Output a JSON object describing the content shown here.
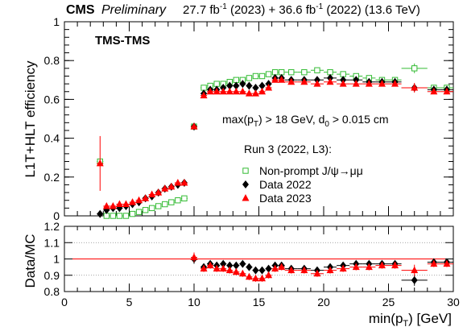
{
  "header": {
    "cms": "CMS",
    "preliminary": "Preliminary",
    "lumi_2023": "27.7 fb",
    "lumi_sup1": "-1",
    "lumi_mid": " (2023) + 36.6 fb",
    "lumi_sup2": "-1",
    "lumi_end": " (2022) (13.6 TeV)"
  },
  "annotations": {
    "trigger": "TMS-TMS",
    "cut_a": "max(p",
    "cut_sub": "T",
    "cut_b": ") > 18 GeV, d",
    "cut_sub2": "0",
    "cut_c": " > 0.015 cm",
    "run": "Run 3 (2022, L3):"
  },
  "legend": {
    "mc": "Non-prompt J/ψ→μμ",
    "data2022": "Data 2022",
    "data2023": "Data 2023"
  },
  "colors": {
    "mc": "#33bb33",
    "data2022": "#000000",
    "data2023": "#ff0000",
    "unity_line": "#ff0000",
    "grid": "#888888"
  },
  "chart_data": [
    {
      "type": "scatter",
      "ylabel": "L1T+HLT efficiency",
      "xlim": [
        0,
        30
      ],
      "ylim": [
        0,
        1
      ],
      "y_ticks": [
        "0",
        "0.2",
        "0.4",
        "0.6",
        "0.8",
        "1"
      ],
      "series": [
        {
          "name": "Non-prompt J/ψ→μμ",
          "marker": "open-square",
          "x": [
            2.75,
            3.25,
            3.75,
            4.25,
            4.75,
            5.25,
            5.75,
            6.25,
            6.75,
            7.25,
            7.75,
            8.25,
            8.75,
            9.25,
            10.0,
            10.75,
            11.25,
            11.75,
            12.25,
            12.75,
            13.25,
            13.75,
            14.25,
            14.75,
            15.25,
            15.75,
            16.25,
            16.75,
            17.5,
            18.5,
            19.5,
            20.5,
            21.5,
            22.5,
            23.5,
            24.5,
            25.5,
            27.0,
            28.5,
            29.5
          ],
          "y": [
            0.28,
            0.0,
            0.0,
            0.0,
            0.0,
            0.01,
            0.02,
            0.03,
            0.04,
            0.05,
            0.06,
            0.07,
            0.08,
            0.09,
            0.46,
            0.66,
            0.67,
            0.68,
            0.68,
            0.69,
            0.7,
            0.7,
            0.71,
            0.72,
            0.72,
            0.73,
            0.74,
            0.74,
            0.74,
            0.74,
            0.75,
            0.74,
            0.73,
            0.72,
            0.71,
            0.7,
            0.7,
            0.76,
            0.66,
            0.66
          ]
        },
        {
          "name": "Data 2022",
          "marker": "filled-diamond",
          "x": [
            2.75,
            3.25,
            3.75,
            4.25,
            4.75,
            5.25,
            5.75,
            6.25,
            6.75,
            7.25,
            7.75,
            8.25,
            8.75,
            9.25,
            10.0,
            10.75,
            11.25,
            11.75,
            12.25,
            12.75,
            13.25,
            13.75,
            14.25,
            14.75,
            15.25,
            15.75,
            16.25,
            16.75,
            17.5,
            18.5,
            19.5,
            20.5,
            21.5,
            22.5,
            23.5,
            24.5,
            25.5,
            27.0,
            28.5,
            29.5
          ],
          "y": [
            0.01,
            0.03,
            0.04,
            0.04,
            0.05,
            0.06,
            0.07,
            0.09,
            0.1,
            0.12,
            0.14,
            0.15,
            0.16,
            0.17,
            0.46,
            0.63,
            0.65,
            0.65,
            0.66,
            0.67,
            0.67,
            0.68,
            0.67,
            0.66,
            0.67,
            0.68,
            0.71,
            0.71,
            0.7,
            0.7,
            0.7,
            0.71,
            0.7,
            0.7,
            0.69,
            0.69,
            0.69,
            0.66,
            0.65,
            0.65
          ]
        },
        {
          "name": "Data 2023",
          "marker": "filled-triangle",
          "x": [
            2.75,
            3.25,
            3.75,
            4.25,
            4.75,
            5.25,
            5.75,
            6.25,
            6.75,
            7.25,
            7.75,
            8.25,
            8.75,
            9.25,
            10.0,
            10.75,
            11.25,
            11.75,
            12.25,
            12.75,
            13.25,
            13.75,
            14.25,
            14.75,
            15.25,
            15.75,
            16.25,
            16.75,
            17.5,
            18.5,
            19.5,
            20.5,
            21.5,
            22.5,
            23.5,
            24.5,
            25.5,
            27.0,
            28.5,
            29.5
          ],
          "y": [
            0.27,
            0.05,
            0.05,
            0.06,
            0.06,
            0.07,
            0.08,
            0.09,
            0.11,
            0.12,
            0.14,
            0.15,
            0.17,
            0.17,
            0.46,
            0.62,
            0.64,
            0.64,
            0.64,
            0.64,
            0.64,
            0.64,
            0.63,
            0.63,
            0.64,
            0.66,
            0.7,
            0.7,
            0.69,
            0.69,
            0.68,
            0.69,
            0.68,
            0.68,
            0.68,
            0.68,
            0.68,
            0.66,
            0.64,
            0.64
          ]
        }
      ]
    },
    {
      "type": "scatter",
      "ylabel": "Data/MC",
      "xlabel": "min(p",
      "xlabel_sub": "T",
      "xlabel_end": ") [GeV]",
      "xlim": [
        0,
        30
      ],
      "ylim": [
        0.8,
        1.2
      ],
      "x_ticks": [
        "0",
        "5",
        "10",
        "15",
        "20",
        "25",
        "30"
      ],
      "y_ticks": [
        "0.8",
        "0.9",
        "1",
        "1.1",
        "1.2"
      ],
      "series": [
        {
          "name": "Data 2022",
          "marker": "filled-diamond",
          "x": [
            10.0,
            10.75,
            11.25,
            11.75,
            12.25,
            12.75,
            13.25,
            13.75,
            14.25,
            14.75,
            15.25,
            15.75,
            16.25,
            16.75,
            17.5,
            18.5,
            19.5,
            20.5,
            21.5,
            22.5,
            23.5,
            24.5,
            25.5,
            27.0,
            28.5,
            29.5
          ],
          "y": [
            1.0,
            0.95,
            0.97,
            0.96,
            0.97,
            0.96,
            0.96,
            0.97,
            0.95,
            0.93,
            0.93,
            0.94,
            0.96,
            0.96,
            0.94,
            0.94,
            0.93,
            0.95,
            0.96,
            0.97,
            0.97,
            0.97,
            0.97,
            0.87,
            0.98,
            0.98
          ]
        },
        {
          "name": "Data 2023",
          "marker": "filled-triangle",
          "x": [
            10.0,
            10.75,
            11.25,
            11.75,
            12.25,
            12.75,
            13.25,
            13.75,
            14.25,
            14.75,
            15.25,
            15.75,
            16.25,
            16.75,
            17.5,
            18.5,
            19.5,
            20.5,
            21.5,
            22.5,
            23.5,
            24.5,
            25.5,
            27.0,
            28.5,
            29.5
          ],
          "y": [
            1.01,
            0.94,
            0.96,
            0.94,
            0.94,
            0.93,
            0.92,
            0.91,
            0.89,
            0.88,
            0.88,
            0.9,
            0.94,
            0.95,
            0.93,
            0.93,
            0.91,
            0.93,
            0.94,
            0.95,
            0.95,
            0.96,
            0.96,
            0.93,
            0.97,
            0.97
          ]
        }
      ]
    }
  ]
}
